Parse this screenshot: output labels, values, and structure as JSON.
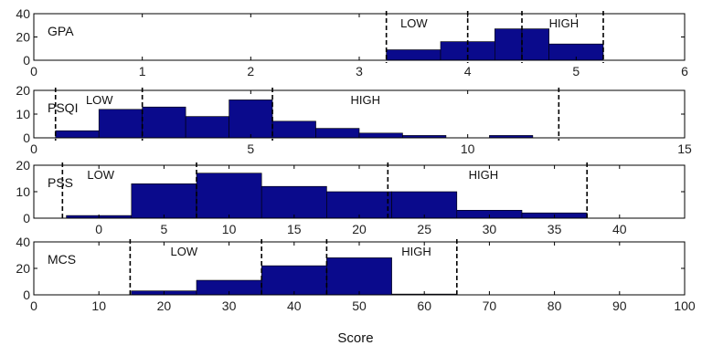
{
  "bar_color": "#0a0a8c",
  "chart_data": [
    {
      "type": "bar",
      "label": "GPA",
      "xlim": [
        0,
        6
      ],
      "xticks": [
        0,
        1,
        2,
        3,
        4,
        5,
        6
      ],
      "ylim": [
        0,
        40
      ],
      "yticks": [
        0,
        20,
        40
      ],
      "bins": [
        {
          "x0": 3.25,
          "x1": 3.75,
          "value": 9
        },
        {
          "x0": 3.75,
          "x1": 4.25,
          "value": 16
        },
        {
          "x0": 4.25,
          "x1": 4.5,
          "value": 27
        },
        {
          "x0": 4.5,
          "x1": 4.75,
          "value": 27
        },
        {
          "x0": 4.75,
          "x1": 5.25,
          "value": 14
        }
      ],
      "cutoffs": [
        3.25,
        4.0,
        4.5,
        5.25
      ],
      "regions": [
        {
          "text": "LOW",
          "x": 3.38
        },
        {
          "text": "HIGH",
          "x": 4.75
        }
      ]
    },
    {
      "type": "bar",
      "label": "PSQI",
      "xlim": [
        0,
        15
      ],
      "xticks": [
        0,
        5,
        10,
        15
      ],
      "ylim": [
        0,
        20
      ],
      "yticks": [
        0,
        10,
        20
      ],
      "bins": [
        {
          "x0": 0.5,
          "x1": 1.5,
          "value": 3
        },
        {
          "x0": 1.5,
          "x1": 2.5,
          "value": 12
        },
        {
          "x0": 2.5,
          "x1": 3.5,
          "value": 13
        },
        {
          "x0": 3.5,
          "x1": 4.5,
          "value": 9
        },
        {
          "x0": 4.5,
          "x1": 5.5,
          "value": 16
        },
        {
          "x0": 5.5,
          "x1": 6.5,
          "value": 7
        },
        {
          "x0": 6.5,
          "x1": 7.5,
          "value": 4
        },
        {
          "x0": 7.5,
          "x1": 8.5,
          "value": 2
        },
        {
          "x0": 8.5,
          "x1": 9.5,
          "value": 1
        },
        {
          "x0": 10.5,
          "x1": 11.5,
          "value": 1
        }
      ],
      "cutoffs": [
        0.5,
        2.5,
        5.5,
        12.1
      ],
      "regions": [
        {
          "text": "LOW",
          "x": 1.2
        },
        {
          "text": "HIGH",
          "x": 7.3
        }
      ]
    },
    {
      "type": "bar",
      "label": "PSS",
      "xlim": [
        -5,
        45
      ],
      "xticks": [
        0,
        5,
        10,
        15,
        20,
        25,
        30,
        35,
        40
      ],
      "ylim": [
        0,
        20
      ],
      "yticks": [
        0,
        10,
        20
      ],
      "bins": [
        {
          "x0": -2.5,
          "x1": 2.5,
          "value": 1
        },
        {
          "x0": 2.5,
          "x1": 7.5,
          "value": 13
        },
        {
          "x0": 7.5,
          "x1": 12.5,
          "value": 17
        },
        {
          "x0": 12.5,
          "x1": 17.5,
          "value": 12
        },
        {
          "x0": 17.5,
          "x1": 22.5,
          "value": 10
        },
        {
          "x0": 22.5,
          "x1": 27.5,
          "value": 10
        },
        {
          "x0": 27.5,
          "x1": 32.5,
          "value": 3
        },
        {
          "x0": 32.5,
          "x1": 37.5,
          "value": 2
        }
      ],
      "cutoffs": [
        -2.8,
        7.5,
        22.2,
        37.5
      ],
      "regions": [
        {
          "text": "LOW",
          "x": -0.9
        },
        {
          "text": "HIGH",
          "x": 28.4
        }
      ]
    },
    {
      "type": "bar",
      "label": "MCS",
      "xlim": [
        0,
        100
      ],
      "xticks": [
        0,
        10,
        20,
        30,
        40,
        50,
        60,
        70,
        80,
        90,
        100
      ],
      "ylim": [
        0,
        40
      ],
      "yticks": [
        0,
        20,
        40
      ],
      "bins": [
        {
          "x0": 15,
          "x1": 25,
          "value": 3
        },
        {
          "x0": 25,
          "x1": 35,
          "value": 11
        },
        {
          "x0": 35,
          "x1": 45,
          "value": 22
        },
        {
          "x0": 45,
          "x1": 55,
          "value": 28
        },
        {
          "x0": 55,
          "x1": 65,
          "value": 0.6
        }
      ],
      "cutoffs": [
        14.8,
        35,
        45,
        65
      ],
      "regions": [
        {
          "text": "LOW",
          "x": 21
        },
        {
          "text": "HIGH",
          "x": 56.5
        }
      ]
    }
  ],
  "xlabel": "Score"
}
